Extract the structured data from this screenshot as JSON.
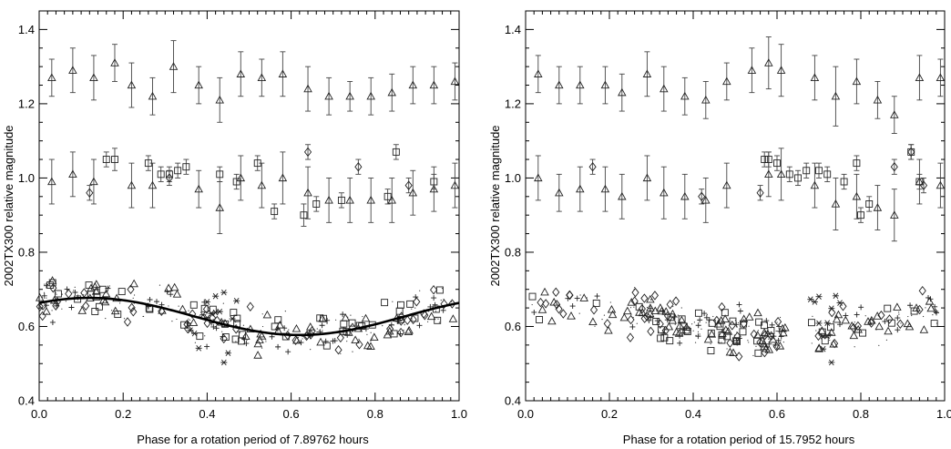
{
  "chart_data": [
    {
      "type": "scatter",
      "xlabel": "Phase for a rotation period of  7.89762 hours",
      "ylabel": "2002TX300 relative magnitude",
      "xlim": [
        0.0,
        1.0
      ],
      "ylim": [
        0.4,
        1.45
      ],
      "x_ticks": [
        "0.0",
        "0.2",
        "0.4",
        "0.6",
        "0.8",
        "1.0"
      ],
      "y_ticks": [
        "0.4",
        "0.6",
        "0.8",
        "1.0",
        "1.2",
        "1.4"
      ],
      "fit_curve": {
        "mean": 0.627,
        "amplitude": 0.05,
        "peak_phase": 0.12
      },
      "series": [
        {
          "marker": "triangle-errorbar",
          "points": [
            [
              0.03,
              1.27,
              0.05
            ],
            [
              0.08,
              1.29,
              0.06
            ],
            [
              0.13,
              1.27,
              0.06
            ],
            [
              0.18,
              1.31,
              0.05
            ],
            [
              0.22,
              1.25,
              0.06
            ],
            [
              0.27,
              1.22,
              0.05
            ],
            [
              0.32,
              1.3,
              0.07
            ],
            [
              0.38,
              1.25,
              0.05
            ],
            [
              0.43,
              1.21,
              0.06
            ],
            [
              0.48,
              1.28,
              0.06
            ],
            [
              0.53,
              1.27,
              0.05
            ],
            [
              0.58,
              1.28,
              0.06
            ],
            [
              0.64,
              1.24,
              0.06
            ],
            [
              0.69,
              1.22,
              0.05
            ],
            [
              0.74,
              1.22,
              0.04
            ],
            [
              0.79,
              1.22,
              0.05
            ],
            [
              0.84,
              1.23,
              0.05
            ],
            [
              0.89,
              1.25,
              0.05
            ],
            [
              0.94,
              1.25,
              0.05
            ],
            [
              0.99,
              1.26,
              0.05
            ]
          ]
        },
        {
          "marker": "triangle-errorbar",
          "points": [
            [
              0.03,
              0.99,
              0.06
            ],
            [
              0.08,
              1.01,
              0.06
            ],
            [
              0.13,
              0.99,
              0.06
            ],
            [
              0.22,
              0.98,
              0.06
            ],
            [
              0.27,
              0.98,
              0.06
            ],
            [
              0.38,
              0.97,
              0.05
            ],
            [
              0.43,
              0.92,
              0.07
            ],
            [
              0.48,
              1.0,
              0.06
            ],
            [
              0.53,
              0.98,
              0.06
            ],
            [
              0.58,
              1.0,
              0.07
            ],
            [
              0.64,
              0.96,
              0.07
            ],
            [
              0.69,
              0.94,
              0.06
            ],
            [
              0.74,
              0.94,
              0.06
            ],
            [
              0.79,
              0.94,
              0.06
            ],
            [
              0.84,
              0.94,
              0.06
            ],
            [
              0.89,
              0.96,
              0.06
            ],
            [
              0.94,
              0.97,
              0.06
            ],
            [
              0.99,
              0.98,
              0.06
            ]
          ]
        },
        {
          "marker": "square-errorbar",
          "points": [
            [
              0.16,
              1.05,
              0.02
            ],
            [
              0.18,
              1.05,
              0.03
            ],
            [
              0.26,
              1.04,
              0.02
            ],
            [
              0.29,
              1.01,
              0.02
            ],
            [
              0.31,
              1.01,
              0.02
            ],
            [
              0.33,
              1.02,
              0.02
            ],
            [
              0.35,
              1.03,
              0.02
            ],
            [
              0.43,
              1.01,
              0.02
            ],
            [
              0.47,
              0.99,
              0.02
            ],
            [
              0.52,
              1.04,
              0.02
            ],
            [
              0.56,
              0.91,
              0.02
            ],
            [
              0.63,
              0.9,
              0.03
            ],
            [
              0.66,
              0.93,
              0.02
            ],
            [
              0.72,
              0.94,
              0.02
            ],
            [
              0.83,
              0.95,
              0.02
            ],
            [
              0.85,
              1.07,
              0.02
            ],
            [
              0.94,
              0.99,
              0.02
            ]
          ]
        },
        {
          "marker": "diamond-errorbar",
          "points": [
            [
              0.12,
              0.96,
              0.02
            ],
            [
              0.31,
              1.0,
              0.02
            ],
            [
              0.64,
              1.07,
              0.02
            ],
            [
              0.76,
              1.03,
              0.02
            ],
            [
              0.88,
              0.98,
              0.02
            ]
          ]
        }
      ]
    },
    {
      "type": "scatter",
      "xlabel": "Phase for a rotation period of  15.7952 hours",
      "ylabel": "2002TX300 relative magnitude",
      "xlim": [
        0.0,
        1.0
      ],
      "ylim": [
        0.4,
        1.45
      ],
      "x_ticks": [
        "0.0",
        "0.2",
        "0.4",
        "0.6",
        "0.8",
        "1.0"
      ],
      "y_ticks": [
        "0.4",
        "0.6",
        "0.8",
        "1.0",
        "1.2",
        "1.4"
      ],
      "series": [
        {
          "marker": "triangle-errorbar",
          "points": [
            [
              0.03,
              1.28,
              0.05
            ],
            [
              0.08,
              1.25,
              0.05
            ],
            [
              0.13,
              1.25,
              0.05
            ],
            [
              0.19,
              1.25,
              0.05
            ],
            [
              0.23,
              1.23,
              0.05
            ],
            [
              0.29,
              1.28,
              0.06
            ],
            [
              0.33,
              1.24,
              0.06
            ],
            [
              0.38,
              1.22,
              0.05
            ],
            [
              0.43,
              1.21,
              0.05
            ],
            [
              0.48,
              1.26,
              0.05
            ],
            [
              0.54,
              1.29,
              0.06
            ],
            [
              0.58,
              1.31,
              0.07
            ],
            [
              0.61,
              1.29,
              0.07
            ],
            [
              0.69,
              1.27,
              0.06
            ],
            [
              0.74,
              1.22,
              0.08
            ],
            [
              0.79,
              1.26,
              0.06
            ],
            [
              0.84,
              1.21,
              0.05
            ],
            [
              0.88,
              1.17,
              0.05
            ],
            [
              0.94,
              1.27,
              0.06
            ],
            [
              0.99,
              1.27,
              0.05
            ]
          ]
        },
        {
          "marker": "triangle-errorbar",
          "points": [
            [
              0.03,
              1.0,
              0.06
            ],
            [
              0.08,
              0.96,
              0.05
            ],
            [
              0.13,
              0.97,
              0.06
            ],
            [
              0.19,
              0.97,
              0.06
            ],
            [
              0.23,
              0.95,
              0.06
            ],
            [
              0.29,
              1.0,
              0.06
            ],
            [
              0.33,
              0.96,
              0.07
            ],
            [
              0.38,
              0.95,
              0.06
            ],
            [
              0.43,
              0.94,
              0.06
            ],
            [
              0.48,
              0.98,
              0.06
            ],
            [
              0.58,
              1.01,
              0.06
            ],
            [
              0.61,
              1.01,
              0.07
            ],
            [
              0.69,
              0.98,
              0.06
            ],
            [
              0.74,
              0.93,
              0.07
            ],
            [
              0.79,
              0.95,
              0.06
            ],
            [
              0.84,
              0.92,
              0.06
            ],
            [
              0.88,
              0.9,
              0.07
            ],
            [
              0.94,
              0.99,
              0.06
            ],
            [
              0.99,
              0.98,
              0.06
            ]
          ]
        },
        {
          "marker": "square-errorbar",
          "points": [
            [
              0.57,
              1.05,
              0.02
            ],
            [
              0.58,
              1.05,
              0.02
            ],
            [
              0.6,
              1.04,
              0.02
            ],
            [
              0.63,
              1.01,
              0.02
            ],
            [
              0.65,
              1.0,
              0.02
            ],
            [
              0.67,
              1.02,
              0.02
            ],
            [
              0.7,
              1.02,
              0.02
            ],
            [
              0.72,
              1.01,
              0.02
            ],
            [
              0.76,
              0.99,
              0.02
            ],
            [
              0.79,
              1.04,
              0.02
            ],
            [
              0.8,
              0.9,
              0.02
            ],
            [
              0.82,
              0.93,
              0.02
            ],
            [
              0.92,
              1.07,
              0.02
            ],
            [
              0.94,
              0.99,
              0.02
            ]
          ]
        },
        {
          "marker": "diamond-errorbar",
          "points": [
            [
              0.16,
              1.03,
              0.02
            ],
            [
              0.42,
              0.95,
              0.02
            ],
            [
              0.56,
              0.96,
              0.02
            ],
            [
              0.88,
              1.03,
              0.02
            ],
            [
              0.92,
              1.07,
              0.02
            ],
            [
              0.95,
              0.98,
              0.02
            ]
          ]
        }
      ]
    }
  ]
}
